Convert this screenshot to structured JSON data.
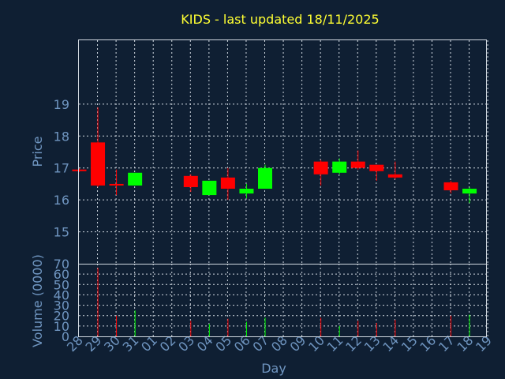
{
  "chart_data": [
    {
      "type": "candlestick",
      "title": "KIDS - last updated 18/11/2025",
      "ylabel": "Price",
      "xlabel": "Day",
      "ylim": [
        14,
        21
      ],
      "yticks": [
        15,
        16,
        17,
        18,
        19
      ],
      "grid": true,
      "x_tick_labels": [
        "28",
        "29",
        "30",
        "31",
        "01",
        "02",
        "03",
        "04",
        "05",
        "06",
        "07",
        "08",
        "09",
        "10",
        "11",
        "12",
        "13",
        "14",
        "15",
        "16",
        "17",
        "18",
        "19"
      ],
      "colors": {
        "up": "#00ff00",
        "down": "#ff0000",
        "background": "#0f1f33",
        "text": "#6f95c0",
        "title": "#ffff33"
      },
      "candles": [
        {
          "day": "28",
          "open": 16.95,
          "high": 16.98,
          "low": 16.88,
          "close": 16.9
        },
        {
          "day": "29",
          "open": 17.8,
          "high": 18.9,
          "low": 16.4,
          "close": 16.45
        },
        {
          "day": "30",
          "open": 16.5,
          "high": 16.95,
          "low": 16.15,
          "close": 16.45
        },
        {
          "day": "31",
          "open": 16.45,
          "high": 16.85,
          "low": 16.45,
          "close": 16.85
        },
        {
          "day": "03",
          "open": 16.75,
          "high": 16.8,
          "low": 16.25,
          "close": 16.4
        },
        {
          "day": "04",
          "open": 16.15,
          "high": 16.6,
          "low": 16.15,
          "close": 16.6
        },
        {
          "day": "05",
          "open": 16.7,
          "high": 17.0,
          "low": 16.0,
          "close": 16.35
        },
        {
          "day": "06",
          "open": 16.2,
          "high": 16.5,
          "low": 16.05,
          "close": 16.35
        },
        {
          "day": "07",
          "open": 16.35,
          "high": 17.1,
          "low": 16.35,
          "close": 17.0
        },
        {
          "day": "10",
          "open": 17.2,
          "high": 17.25,
          "low": 16.45,
          "close": 16.8
        },
        {
          "day": "11",
          "open": 16.85,
          "high": 17.3,
          "low": 16.8,
          "close": 17.2
        },
        {
          "day": "12",
          "open": 17.2,
          "high": 17.55,
          "low": 16.95,
          "close": 17.0
        },
        {
          "day": "13",
          "open": 17.1,
          "high": 17.1,
          "low": 16.6,
          "close": 16.9
        },
        {
          "day": "14",
          "open": 16.8,
          "high": 17.2,
          "low": 16.65,
          "close": 16.7
        },
        {
          "day": "17",
          "open": 16.55,
          "high": 16.6,
          "low": 16.2,
          "close": 16.3
        },
        {
          "day": "18",
          "open": 16.2,
          "high": 16.4,
          "low": 15.9,
          "close": 16.35
        }
      ]
    },
    {
      "type": "bar",
      "ylabel": "Volume (0000)",
      "ylim": [
        0,
        70
      ],
      "yticks": [
        0,
        10,
        20,
        30,
        40,
        50,
        60,
        70
      ],
      "grid": true,
      "volumes": [
        {
          "day": "28",
          "value": 0,
          "direction": "down"
        },
        {
          "day": "29",
          "value": 66,
          "direction": "down"
        },
        {
          "day": "30",
          "value": 20,
          "direction": "down"
        },
        {
          "day": "31",
          "value": 25,
          "direction": "up"
        },
        {
          "day": "03",
          "value": 15,
          "direction": "down"
        },
        {
          "day": "04",
          "value": 12,
          "direction": "up"
        },
        {
          "day": "05",
          "value": 17,
          "direction": "down"
        },
        {
          "day": "06",
          "value": 14,
          "direction": "up"
        },
        {
          "day": "07",
          "value": 18,
          "direction": "up"
        },
        {
          "day": "10",
          "value": 18,
          "direction": "down"
        },
        {
          "day": "11",
          "value": 10,
          "direction": "up"
        },
        {
          "day": "12",
          "value": 15,
          "direction": "down"
        },
        {
          "day": "13",
          "value": 13,
          "direction": "down"
        },
        {
          "day": "14",
          "value": 16,
          "direction": "down"
        },
        {
          "day": "17",
          "value": 20,
          "direction": "down"
        },
        {
          "day": "18",
          "value": 21,
          "direction": "up"
        }
      ]
    }
  ]
}
